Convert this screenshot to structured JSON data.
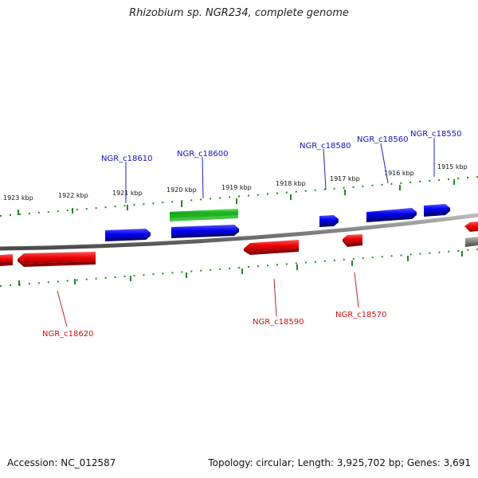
{
  "title": "Rhizobium sp. NGR234, complete genome",
  "footer": {
    "accession": "Accession: NC_012587",
    "summary": "Topology: circular; Length: 3,925,702 bp; Genes: 3,691"
  },
  "ruler": {
    "labels": [
      "1923 kbp",
      "1922 kbp",
      "1921 kbp",
      "1920 kbp",
      "1919 kbp",
      "1918 kbp",
      "1917 kbp",
      "1916 kbp",
      "1915 kbp"
    ]
  },
  "genes": {
    "forward": [
      "NGR_c18610",
      "NGR_c18600",
      "NGR_c18580",
      "NGR_c18560",
      "NGR_c18550"
    ],
    "reverse": [
      "NGR_c18620",
      "NGR_c18590",
      "NGR_c18570"
    ]
  },
  "colors": {
    "forward": "#1010e0",
    "reverse": "#e01010",
    "rrna": "#22bb22",
    "tick": "#228822",
    "backbone": "#808080"
  }
}
